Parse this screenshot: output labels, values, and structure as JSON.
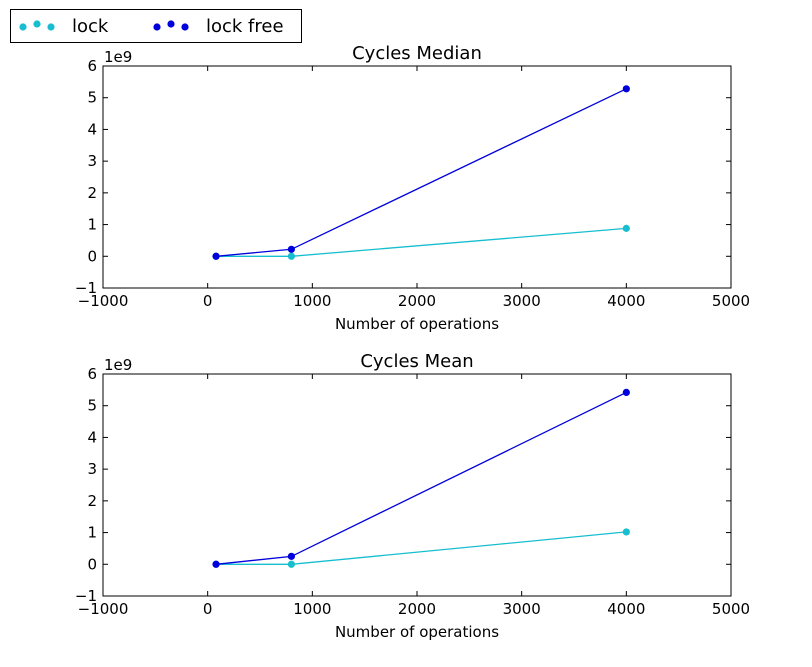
{
  "legend": {
    "placement": "top-left, outside axes",
    "entries": [
      {
        "label": "lock",
        "color": "#17becf"
      },
      {
        "label": "lock free",
        "color": "#0000dd"
      }
    ]
  },
  "chart_data": [
    {
      "type": "line",
      "title": "Cycles Median",
      "xlabel": "Number of operations",
      "ylabel": "",
      "y_offset_label": "1e9",
      "xlim": [
        -1000,
        5000
      ],
      "ylim": [
        -1,
        6
      ],
      "xticks": [
        -1000,
        0,
        1000,
        2000,
        3000,
        4000,
        5000
      ],
      "yticks": [
        -1,
        0,
        1,
        2,
        3,
        4,
        5,
        6
      ],
      "x": [
        80,
        800,
        4000
      ],
      "series": [
        {
          "name": "lock",
          "color": "#17becf",
          "values": [
            0.0,
            0.0,
            0.88
          ]
        },
        {
          "name": "lock free",
          "color": "#0000dd",
          "values": [
            0.0,
            0.22,
            5.28
          ]
        }
      ],
      "grid": false
    },
    {
      "type": "line",
      "title": "Cycles Mean",
      "xlabel": "Number of operations",
      "ylabel": "",
      "y_offset_label": "1e9",
      "xlim": [
        -1000,
        5000
      ],
      "ylim": [
        -1,
        6
      ],
      "xticks": [
        -1000,
        0,
        1000,
        2000,
        3000,
        4000,
        5000
      ],
      "yticks": [
        -1,
        0,
        1,
        2,
        3,
        4,
        5,
        6
      ],
      "x": [
        80,
        800,
        4000
      ],
      "series": [
        {
          "name": "lock",
          "color": "#17becf",
          "values": [
            0.0,
            0.0,
            1.02
          ]
        },
        {
          "name": "lock free",
          "color": "#0000dd",
          "values": [
            0.0,
            0.25,
            5.42
          ]
        }
      ],
      "grid": false
    }
  ]
}
